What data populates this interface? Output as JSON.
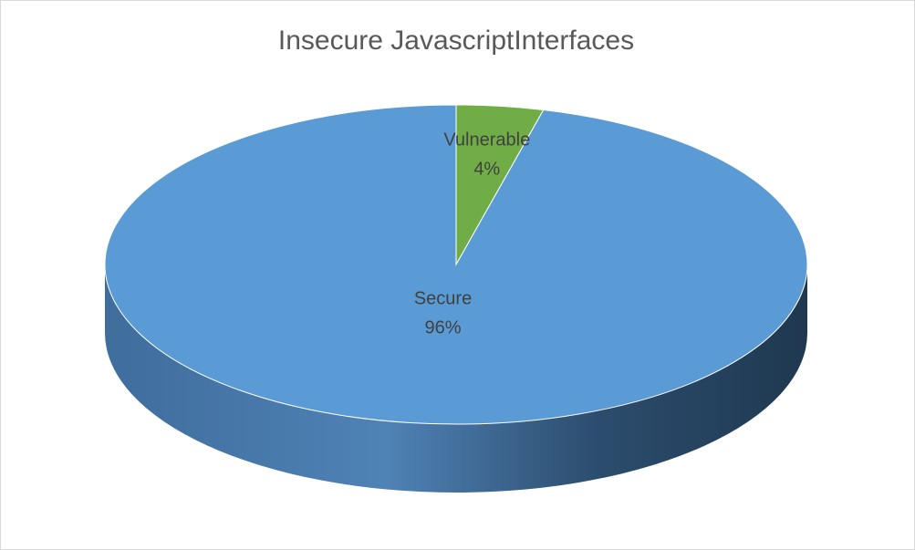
{
  "chart_data": {
    "type": "pie",
    "title": "Insecure JavascriptInterfaces",
    "categories": [
      "Vulnerable",
      "Secure"
    ],
    "values": [
      4,
      96
    ],
    "value_labels": [
      "4%",
      "96%"
    ],
    "colors": [
      "#70ad47",
      "#5b9bd5"
    ]
  }
}
